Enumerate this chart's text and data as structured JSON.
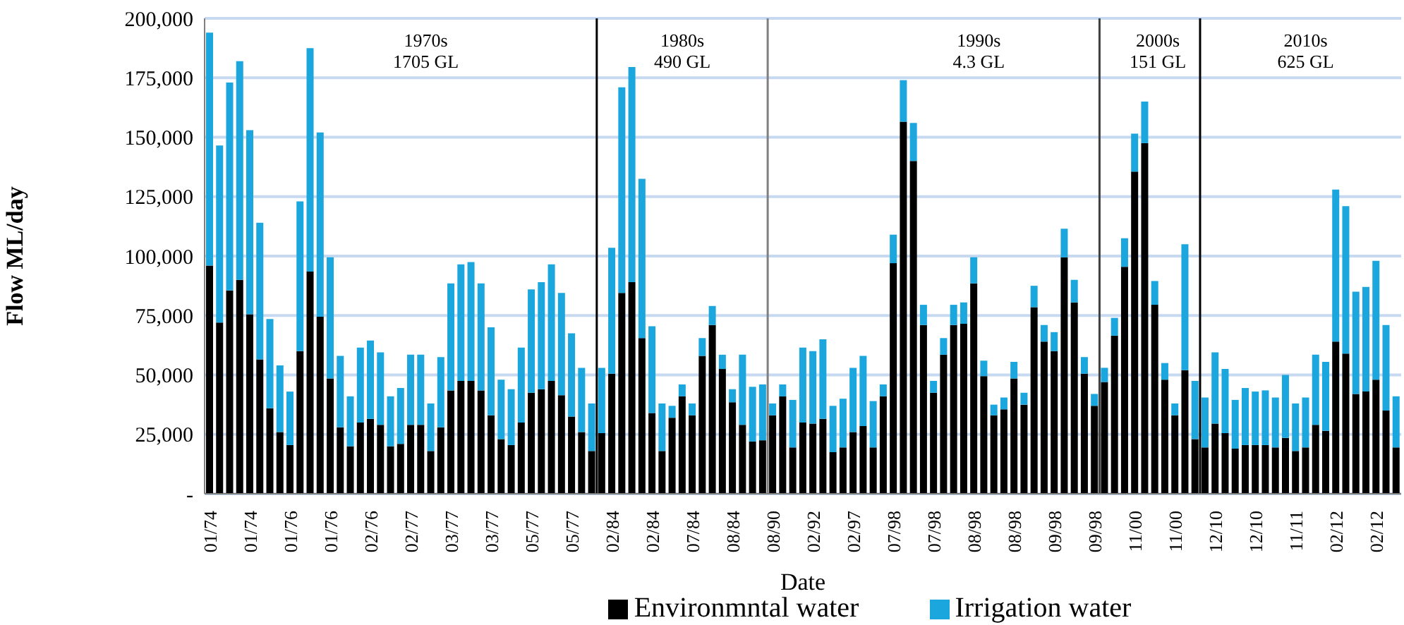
{
  "chart_data": {
    "type": "bar",
    "stacked": true,
    "xlabel": "Date",
    "ylabel": "Flow ML/day",
    "categories": [
      "01/74",
      null,
      null,
      null,
      "01/74",
      null,
      null,
      null,
      "01/76",
      null,
      null,
      null,
      "01/76",
      null,
      null,
      null,
      "02/76",
      null,
      null,
      null,
      "02/77",
      null,
      null,
      null,
      "03/77",
      null,
      null,
      null,
      "03/77",
      null,
      null,
      null,
      "05/77",
      null,
      null,
      null,
      "05/77",
      null,
      null,
      null,
      "02/84",
      null,
      null,
      null,
      "02/84",
      null,
      null,
      null,
      "07/84",
      null,
      null,
      null,
      "08/84",
      null,
      null,
      null,
      "08/90",
      null,
      null,
      null,
      "02/92",
      null,
      null,
      null,
      "02/97",
      null,
      null,
      null,
      "07/98",
      null,
      null,
      null,
      "07/98",
      null,
      null,
      null,
      "08/98",
      null,
      null,
      null,
      "08/98",
      null,
      null,
      null,
      "09/98",
      null,
      null,
      null,
      "09/98",
      null,
      null,
      null,
      "11/00",
      null,
      null,
      null,
      "11/00",
      null,
      null,
      null,
      "12/10",
      null,
      null,
      null,
      "12/10",
      null,
      null,
      null,
      "11/11",
      null,
      null,
      null,
      "02/12",
      null,
      null,
      null,
      "02/12",
      null,
      null
    ],
    "series": [
      {
        "name": "Environmntal water",
        "color": "#000000",
        "values": [
          96000,
          72000,
          85500,
          90000,
          75500,
          56500,
          36000,
          26000,
          20500,
          60000,
          93500,
          74500,
          48500,
          28000,
          20000,
          30000,
          31500,
          29000,
          20000,
          21000,
          29000,
          29000,
          18000,
          28000,
          43500,
          47500,
          47500,
          43500,
          33000,
          23000,
          20500,
          30000,
          42500,
          44000,
          47500,
          41500,
          32500,
          26000,
          18000,
          25500,
          50500,
          84500,
          89000,
          65500,
          34000,
          18000,
          32000,
          41000,
          33000,
          58000,
          71000,
          52500,
          38500,
          29000,
          22000,
          22500,
          33000,
          41000,
          19500,
          30000,
          29500,
          31500,
          17500,
          19500,
          26000,
          28500,
          19500,
          41000,
          97000,
          156500,
          140000,
          71000,
          42500,
          58500,
          71000,
          71500,
          88500,
          49500,
          33000,
          35500,
          48500,
          37500,
          78500,
          64000,
          60000,
          99500,
          80500,
          50500,
          37000,
          47000,
          66500,
          95500,
          135500,
          147500,
          79500,
          48000,
          33000,
          52000,
          23000,
          19500,
          29500,
          25500,
          19000,
          20500,
          20500,
          20500,
          19500,
          23500,
          18000,
          19500,
          29000,
          26500,
          64000,
          59000,
          42000,
          43000,
          48000,
          35000,
          19500
        ]
      },
      {
        "name": "Irrigation water",
        "color": "#1ba6dd",
        "values": [
          98000,
          74500,
          87500,
          92000,
          77500,
          57500,
          37500,
          28000,
          22500,
          63000,
          94000,
          77500,
          51000,
          30000,
          21000,
          31500,
          33000,
          30500,
          21000,
          23500,
          29500,
          29500,
          20000,
          29500,
          45000,
          49000,
          50000,
          45000,
          37000,
          25000,
          23500,
          31500,
          43500,
          45000,
          49000,
          43000,
          35000,
          27000,
          20000,
          27500,
          53000,
          86500,
          90500,
          67000,
          36500,
          20000,
          5000,
          5000,
          5000,
          7500,
          8000,
          6000,
          5500,
          29500,
          23000,
          23500,
          5000,
          5000,
          20000,
          31500,
          30500,
          33500,
          19500,
          20500,
          27000,
          29500,
          19500,
          5000,
          12000,
          17500,
          16000,
          8500,
          5000,
          7000,
          8500,
          9000,
          11000,
          6500,
          4500,
          5000,
          7000,
          5000,
          9000,
          7000,
          8000,
          12000,
          9500,
          7000,
          5000,
          6000,
          7500,
          12000,
          16000,
          17500,
          10000,
          7000,
          5000,
          53000,
          24500,
          21000,
          30000,
          27000,
          20500,
          24000,
          22500,
          23000,
          21000,
          26500,
          20000,
          21000,
          29500,
          29000,
          64000,
          62000,
          43000,
          44000,
          50000,
          36000,
          21500
        ]
      }
    ],
    "ylim": [
      0,
      200000
    ],
    "yticks": [
      {
        "value": 0,
        "label": "-"
      },
      {
        "value": 25000,
        "label": "25,000"
      },
      {
        "value": 50000,
        "label": "50,000"
      },
      {
        "value": 75000,
        "label": "75,000"
      },
      {
        "value": 100000,
        "label": "100,000"
      },
      {
        "value": 125000,
        "label": "125,000"
      },
      {
        "value": 150000,
        "label": "150,000"
      },
      {
        "value": 175000,
        "label": "175,000"
      },
      {
        "value": 200000,
        "label": "200,000"
      }
    ],
    "grid": "y",
    "legend": "bottom",
    "annotations": [
      "1970s\n1705 GL",
      "1980s\n490 GL",
      "1990s\n4.3 GL",
      "2000s\n151 GL",
      "2010s\n625 GL"
    ]
  }
}
